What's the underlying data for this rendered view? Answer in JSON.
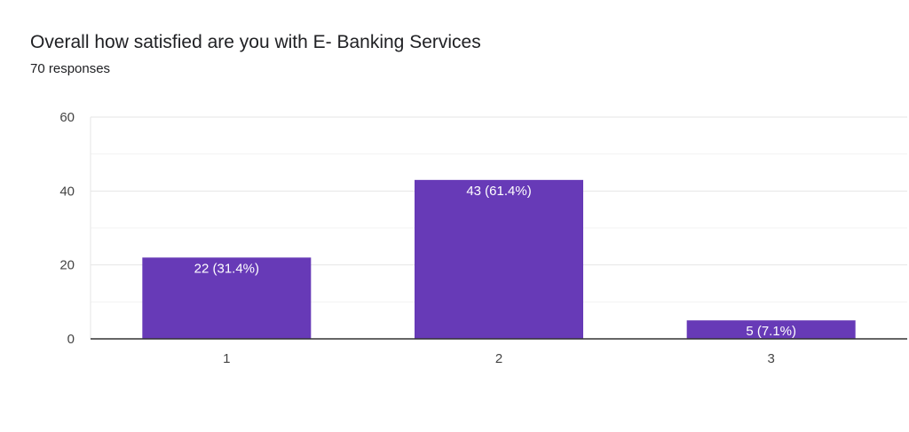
{
  "header": {
    "title": "Overall how satisfied are you with E- Banking Services",
    "responses": "70 responses"
  },
  "colors": {
    "bar": "#673ab7",
    "grid": "#e6e6e6",
    "axis": "#333333"
  },
  "chart_data": {
    "type": "bar",
    "categories": [
      "1",
      "2",
      "3"
    ],
    "values": [
      22,
      43,
      5
    ],
    "data_labels": [
      "22 (31.4%)",
      "43 (61.4%)",
      "5 (7.1%)"
    ],
    "ylim": [
      0,
      60
    ],
    "yticks": [
      0,
      20,
      40,
      60
    ],
    "ytick_labels": [
      "0",
      "20",
      "40",
      "60"
    ],
    "minor_grid": true,
    "legend": "none"
  }
}
